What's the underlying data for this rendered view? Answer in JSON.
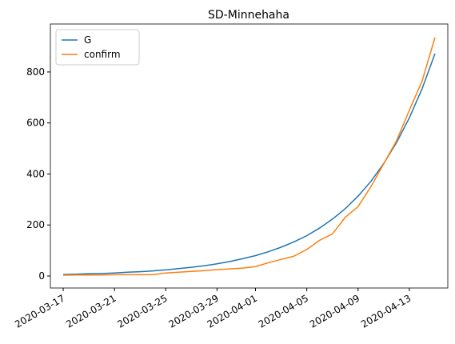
{
  "chart_data": {
    "type": "line",
    "title": "SD-Minnehaha",
    "x": [
      "2020-03-17",
      "2020-03-18",
      "2020-03-19",
      "2020-03-20",
      "2020-03-21",
      "2020-03-22",
      "2020-03-23",
      "2020-03-24",
      "2020-03-25",
      "2020-03-26",
      "2020-03-27",
      "2020-03-28",
      "2020-03-29",
      "2020-03-30",
      "2020-03-31",
      "2020-04-01",
      "2020-04-02",
      "2020-04-03",
      "2020-04-04",
      "2020-04-05",
      "2020-04-06",
      "2020-04-07",
      "2020-04-08",
      "2020-04-09",
      "2020-04-10",
      "2020-04-11",
      "2020-04-12",
      "2020-04-13",
      "2020-04-14",
      "2020-04-15"
    ],
    "series": [
      {
        "name": "G",
        "color": "#1f77b4",
        "values": [
          6,
          7,
          9,
          10,
          12,
          15,
          17,
          20,
          24,
          29,
          34,
          40,
          48,
          57,
          68,
          80,
          95,
          113,
          134,
          158,
          188,
          223,
          264,
          313,
          371,
          441,
          523,
          620,
          735,
          872
        ]
      },
      {
        "name": "confirm",
        "color": "#ff7f0e",
        "values": [
          3,
          4,
          4,
          4,
          5,
          5,
          5,
          5,
          12,
          15,
          18,
          21,
          25,
          28,
          31,
          37,
          52,
          65,
          78,
          104,
          140,
          165,
          230,
          272,
          350,
          440,
          530,
          650,
          765,
          935
        ]
      }
    ],
    "xlim": [
      "2020-03-16",
      "2020-04-16"
    ],
    "xticks": [
      "2020-03-17",
      "2020-03-21",
      "2020-03-25",
      "2020-03-29",
      "2020-04-01",
      "2020-04-05",
      "2020-04-09",
      "2020-04-13"
    ],
    "ylim": [
      -47,
      988
    ],
    "yticks": [
      0,
      200,
      400,
      600,
      800
    ],
    "legend": "upper left"
  }
}
